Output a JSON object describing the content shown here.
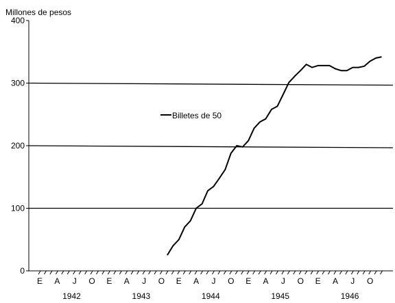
{
  "chart_data": {
    "type": "line",
    "ylabel": "Millones de pesos",
    "ylim": [
      0,
      400
    ],
    "yticks": [
      0,
      100,
      200,
      300,
      400
    ],
    "grid": "horizontal",
    "legend": {
      "position": "center-left",
      "entries": [
        "Billetes de 50"
      ]
    },
    "x_month_labels": [
      "E",
      "A",
      "J",
      "O",
      "E",
      "A",
      "J",
      "O",
      "E",
      "A",
      "J",
      "O",
      "E",
      "A",
      "J",
      "O",
      "E",
      "A",
      "J",
      "O"
    ],
    "x_year_labels": [
      "1942",
      "1943",
      "1944",
      "1945",
      "1946"
    ],
    "series": [
      {
        "name": "Billetes de 50",
        "x": [
          "1943-11",
          "1943-12",
          "1944-01",
          "1944-02",
          "1944-03",
          "1944-04",
          "1944-05",
          "1944-06",
          "1944-07",
          "1944-08",
          "1944-09",
          "1944-10",
          "1944-11",
          "1944-12",
          "1945-01",
          "1945-02",
          "1945-03",
          "1945-04",
          "1945-05",
          "1945-06",
          "1945-07",
          "1945-08",
          "1945-09",
          "1945-10",
          "1945-11",
          "1945-12",
          "1946-01",
          "1946-02",
          "1946-03",
          "1946-04",
          "1946-05",
          "1946-06",
          "1946-07",
          "1946-08",
          "1946-09",
          "1946-10",
          "1946-11",
          "1946-12"
        ],
        "values": [
          25,
          40,
          50,
          70,
          80,
          100,
          107,
          128,
          135,
          148,
          162,
          188,
          200,
          198,
          208,
          228,
          238,
          243,
          258,
          263,
          282,
          301,
          311,
          320,
          330,
          325,
          328,
          328,
          328,
          323,
          320,
          320,
          325,
          325,
          327,
          335,
          340,
          342
        ]
      }
    ]
  }
}
